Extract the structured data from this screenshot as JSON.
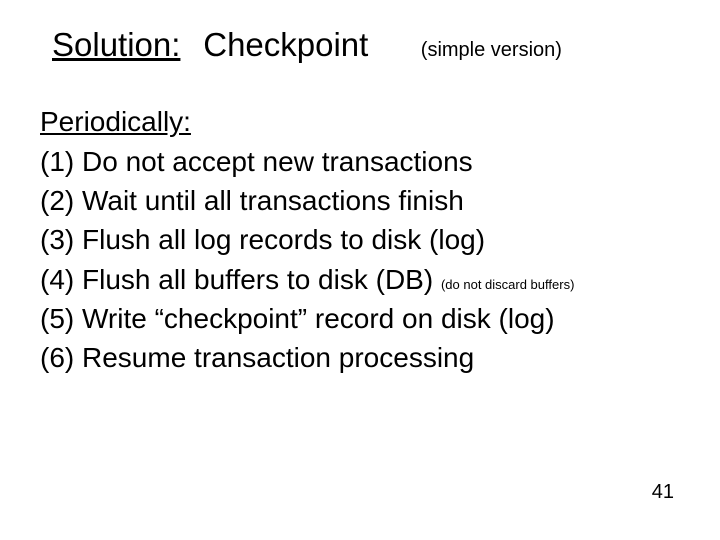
{
  "title": {
    "main": "Solution:",
    "sub": "Checkpoint",
    "note": "(simple version)"
  },
  "subhead": "Periodically:",
  "steps": {
    "s1": "(1) Do not accept new transactions",
    "s2": "(2) Wait until all transactions finish",
    "s3": "(3) Flush all log records to disk (log)",
    "s4a": "(4) Flush all buffers to disk (DB)",
    "s4b": "(do not discard buffers)",
    "s5": "(5) Write “checkpoint” record on disk (log)",
    "s6": "(6) Resume transaction processing"
  },
  "page_number": "41",
  "style": {
    "background_color": "#ffffff",
    "text_color": "#000000",
    "title_fontsize_pt": 33,
    "note_fontsize_pt": 20,
    "body_fontsize_pt": 28,
    "small_inline_fontsize_pt": 13,
    "pagenum_fontsize_pt": 20,
    "font_family": "Verdana"
  }
}
